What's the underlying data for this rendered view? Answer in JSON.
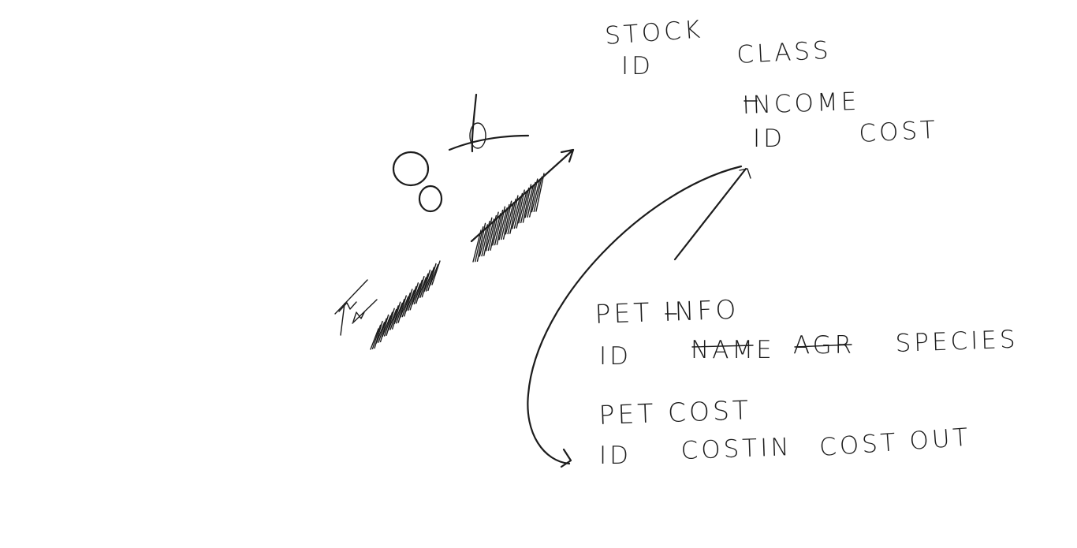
{
  "tables": [
    {
      "title": "STOCK",
      "fields": [
        "ID",
        "CLASS"
      ]
    },
    {
      "title": "INCOME",
      "fields": [
        "ID",
        "COST"
      ]
    },
    {
      "title": "PET INFO",
      "fields": [
        "ID",
        "NAME",
        "AGR",
        "SPECIES"
      ]
    },
    {
      "title": "PET COST",
      "fields": [
        "ID",
        "COSTIN",
        "COST OUT"
      ]
    }
  ],
  "ink_color": "#1c1c1c"
}
